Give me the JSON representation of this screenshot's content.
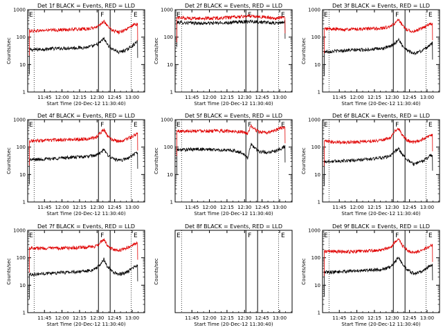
{
  "figure": {
    "layout": "3x3 grid of detector light curves",
    "y_scale": "log",
    "series_colors": {
      "Events": "#000000",
      "LLD": "#e00000"
    }
  },
  "chart_data": [
    {
      "type": "line",
      "title": "Det 1f BLACK = Events, RED = LLD",
      "xlabel": "Start Time (20-Dec-12 11:30:40)",
      "ylabel": "Counts/sec",
      "xticks": [
        "11:45",
        "12:00",
        "12:15",
        "12:30",
        "12:45",
        "13:00"
      ],
      "x_range_minutes": [
        0,
        100
      ],
      "ylim": [
        1,
        1000
      ],
      "yticks": [
        "1",
        "10",
        "100",
        "1000"
      ],
      "markers": [
        {
          "label": "E",
          "x": 0
        },
        {
          "label": "F",
          "x": 65.5
        },
        {
          "label": "E",
          "x": 94
        }
      ],
      "series": [
        {
          "name": "Events",
          "color": "#000000",
          "x": [
            0,
            5,
            20,
            35,
            50,
            58,
            62,
            65,
            68,
            72,
            78,
            85,
            91,
            94
          ],
          "y": [
            35,
            35,
            38,
            40,
            42,
            50,
            65,
            90,
            55,
            38,
            28,
            35,
            55,
            70
          ]
        },
        {
          "name": "LLD",
          "color": "#e00000",
          "x": [
            0,
            5,
            20,
            35,
            50,
            58,
            62,
            65,
            68,
            72,
            78,
            85,
            91,
            94
          ],
          "y": [
            170,
            170,
            180,
            190,
            200,
            220,
            300,
            380,
            250,
            180,
            150,
            200,
            280,
            300
          ]
        }
      ]
    },
    {
      "type": "line",
      "title": "Det 2f BLACK = Events, RED = LLD",
      "xlabel": "Start Time (20-Dec-12 11:30:40)",
      "ylabel": "Counts/sec",
      "xticks": [
        "11:45",
        "12:00",
        "12:15",
        "12:30",
        "12:45",
        "13:00"
      ],
      "x_range_minutes": [
        0,
        100
      ],
      "ylim": [
        1,
        1000
      ],
      "yticks": [
        "1",
        "10",
        "100",
        "1000"
      ],
      "markers": [
        {
          "label": "E",
          "x": 0
        },
        {
          "label": "F",
          "x": 65.5
        },
        {
          "label": "E",
          "x": 94
        }
      ],
      "series": [
        {
          "name": "Events",
          "color": "#000000",
          "x": [
            0,
            20,
            40,
            55,
            65,
            75,
            85,
            94
          ],
          "y": [
            350,
            320,
            330,
            360,
            380,
            350,
            320,
            350
          ]
        },
        {
          "name": "LLD",
          "color": "#e00000",
          "x": [
            0,
            20,
            40,
            55,
            65,
            75,
            85,
            94
          ],
          "y": [
            520,
            480,
            500,
            550,
            600,
            550,
            480,
            550
          ]
        }
      ]
    },
    {
      "type": "line",
      "title": "Det 3f BLACK = Events, RED = LLD",
      "xlabel": "Start Time (20-Dec-12 11:30:40)",
      "ylabel": "Counts/sec",
      "xticks": [
        "11:45",
        "12:00",
        "12:15",
        "12:30",
        "12:45",
        "13:00"
      ],
      "x_range_minutes": [
        0,
        100
      ],
      "ylim": [
        1,
        1000
      ],
      "yticks": [
        "1",
        "10",
        "100",
        "1000"
      ],
      "markers": [
        {
          "label": "E",
          "x": 0
        },
        {
          "label": "F",
          "x": 65.5
        },
        {
          "label": "E",
          "x": 94
        }
      ],
      "series": [
        {
          "name": "Events",
          "color": "#000000",
          "x": [
            0,
            5,
            20,
            35,
            50,
            58,
            62,
            65,
            68,
            72,
            78,
            85,
            91,
            94
          ],
          "y": [
            30,
            30,
            33,
            35,
            38,
            45,
            60,
            85,
            50,
            35,
            25,
            32,
            50,
            60
          ]
        },
        {
          "name": "LLD",
          "color": "#e00000",
          "x": [
            0,
            5,
            20,
            35,
            50,
            58,
            62,
            65,
            68,
            72,
            78,
            85,
            91,
            94
          ],
          "y": [
            200,
            200,
            190,
            200,
            210,
            240,
            330,
            420,
            270,
            190,
            160,
            210,
            290,
            310
          ]
        }
      ]
    },
    {
      "type": "line",
      "title": "Det 4f BLACK = Events, RED = LLD",
      "xlabel": "Start Time (20-Dec-12 11:30:40)",
      "ylabel": "Counts/sec",
      "xticks": [
        "11:45",
        "12:00",
        "12:15",
        "12:30",
        "12:45",
        "13:00"
      ],
      "x_range_minutes": [
        0,
        100
      ],
      "ylim": [
        1,
        1000
      ],
      "yticks": [
        "1",
        "10",
        "100",
        "1000"
      ],
      "markers": [
        {
          "label": "E",
          "x": 0
        },
        {
          "label": "F",
          "x": 65.5
        },
        {
          "label": "E",
          "x": 94
        }
      ],
      "series": [
        {
          "name": "Events",
          "color": "#000000",
          "x": [
            0,
            5,
            20,
            35,
            50,
            58,
            62,
            65,
            68,
            72,
            78,
            85,
            91,
            94
          ],
          "y": [
            35,
            35,
            38,
            42,
            45,
            50,
            60,
            80,
            55,
            40,
            32,
            38,
            55,
            65
          ]
        },
        {
          "name": "LLD",
          "color": "#e00000",
          "x": [
            0,
            5,
            20,
            35,
            50,
            58,
            62,
            65,
            68,
            72,
            78,
            85,
            91,
            94
          ],
          "y": [
            170,
            170,
            180,
            190,
            200,
            220,
            320,
            450,
            260,
            190,
            160,
            200,
            270,
            300
          ]
        }
      ]
    },
    {
      "type": "line",
      "title": "Det 5f BLACK = Events, RED = LLD",
      "xlabel": "Start Time (20-Dec-12 11:30:40)",
      "ylabel": "Counts/sec",
      "xticks": [
        "11:45",
        "12:00",
        "12:15",
        "12:30",
        "12:45",
        "13:00"
      ],
      "x_range_minutes": [
        0,
        100
      ],
      "ylim": [
        1,
        1000
      ],
      "yticks": [
        "1",
        "10",
        "100",
        "1000"
      ],
      "markers": [
        {
          "label": "E",
          "x": 0
        },
        {
          "label": "F",
          "x": 65.5
        },
        {
          "label": "E",
          "x": 94
        }
      ],
      "series": [
        {
          "name": "Events",
          "color": "#000000",
          "x": [
            0,
            5,
            20,
            35,
            50,
            58,
            62,
            65,
            68,
            72,
            78,
            85,
            91,
            94
          ],
          "y": [
            80,
            80,
            85,
            80,
            75,
            60,
            40,
            130,
            95,
            70,
            65,
            70,
            90,
            110
          ]
        },
        {
          "name": "LLD",
          "color": "#e00000",
          "x": [
            0,
            5,
            20,
            35,
            50,
            58,
            62,
            65,
            68,
            72,
            78,
            85,
            91,
            94
          ],
          "y": [
            380,
            380,
            400,
            390,
            380,
            360,
            300,
            600,
            450,
            360,
            330,
            400,
            500,
            550
          ]
        }
      ]
    },
    {
      "type": "line",
      "title": "Det 6f BLACK = Events, RED = LLD",
      "xlabel": "Start Time (20-Dec-12 11:30:40)",
      "ylabel": "Counts/sec",
      "xticks": [
        "11:45",
        "12:00",
        "12:15",
        "12:30",
        "12:45",
        "13:00"
      ],
      "x_range_minutes": [
        0,
        100
      ],
      "ylim": [
        1,
        1000
      ],
      "yticks": [
        "1",
        "10",
        "100",
        "1000"
      ],
      "markers": [
        {
          "label": "E",
          "x": 0
        },
        {
          "label": "F",
          "x": 65.5
        },
        {
          "label": "E",
          "x": 94
        }
      ],
      "series": [
        {
          "name": "Events",
          "color": "#000000",
          "x": [
            0,
            5,
            20,
            35,
            50,
            58,
            62,
            65,
            68,
            72,
            78,
            85,
            91,
            94
          ],
          "y": [
            30,
            30,
            32,
            35,
            40,
            48,
            70,
            90,
            55,
            35,
            24,
            30,
            45,
            55
          ]
        },
        {
          "name": "LLD",
          "color": "#e00000",
          "x": [
            0,
            5,
            20,
            35,
            50,
            58,
            62,
            65,
            68,
            72,
            78,
            85,
            91,
            94
          ],
          "y": [
            160,
            160,
            150,
            160,
            180,
            220,
            380,
            480,
            280,
            180,
            150,
            190,
            250,
            280
          ]
        }
      ]
    },
    {
      "type": "line",
      "title": "Det 7f BLACK = Events, RED = LLD",
      "xlabel": "Start Time (20-Dec-12 11:30:40)",
      "ylabel": "Counts/sec",
      "xticks": [
        "11:45",
        "12:00",
        "12:15",
        "12:30",
        "12:45",
        "13:00"
      ],
      "x_range_minutes": [
        0,
        100
      ],
      "ylim": [
        1,
        1000
      ],
      "yticks": [
        "1",
        "10",
        "100",
        "1000"
      ],
      "markers": [
        {
          "label": "E",
          "x": 0
        },
        {
          "label": "F",
          "x": 65.5
        },
        {
          "label": "E",
          "x": 94
        }
      ],
      "series": [
        {
          "name": "Events",
          "color": "#000000",
          "x": [
            0,
            5,
            20,
            35,
            50,
            58,
            62,
            65,
            68,
            72,
            78,
            85,
            91,
            94
          ],
          "y": [
            25,
            25,
            28,
            30,
            32,
            40,
            55,
            90,
            50,
            32,
            25,
            30,
            45,
            55
          ]
        },
        {
          "name": "LLD",
          "color": "#e00000",
          "x": [
            0,
            5,
            20,
            35,
            50,
            58,
            62,
            65,
            68,
            72,
            78,
            85,
            91,
            94
          ],
          "y": [
            230,
            230,
            220,
            230,
            240,
            260,
            350,
            480,
            280,
            210,
            180,
            230,
            320,
            340
          ]
        }
      ]
    },
    {
      "type": "line",
      "title": "Det 8f BLACK = Events, RED = LLD",
      "xlabel": "Start Time (20-Dec-12 11:30:40)",
      "ylabel": "Counts/sec",
      "xticks": [
        "11:45",
        "12:00",
        "12:15",
        "12:30",
        "12:45",
        "13:00"
      ],
      "x_range_minutes": [
        0,
        100
      ],
      "ylim": [
        1,
        1000
      ],
      "yticks": [],
      "markers": [
        {
          "label": "E",
          "x": 0
        },
        {
          "label": "F",
          "x": 65.5
        },
        {
          "label": "E",
          "x": 94
        }
      ],
      "series": []
    },
    {
      "type": "line",
      "title": "Det 9f BLACK = Events, RED = LLD",
      "xlabel": "Start Time (20-Dec-12 11:30:40)",
      "ylabel": "Counts/sec",
      "xticks": [
        "11:45",
        "12:00",
        "12:15",
        "12:30",
        "12:45",
        "13:00"
      ],
      "x_range_minutes": [
        0,
        100
      ],
      "ylim": [
        1,
        1000
      ],
      "yticks": [
        "1",
        "10",
        "100",
        "1000"
      ],
      "markers": [
        {
          "label": "E",
          "x": 0
        },
        {
          "label": "F",
          "x": 65.5
        },
        {
          "label": "E",
          "x": 94
        }
      ],
      "series": [
        {
          "name": "Events",
          "color": "#000000",
          "x": [
            0,
            5,
            20,
            35,
            50,
            58,
            62,
            65,
            68,
            72,
            78,
            85,
            91,
            94
          ],
          "y": [
            30,
            30,
            32,
            35,
            38,
            45,
            70,
            110,
            60,
            38,
            26,
            32,
            48,
            60
          ]
        },
        {
          "name": "LLD",
          "color": "#e00000",
          "x": [
            0,
            5,
            20,
            35,
            50,
            58,
            62,
            65,
            68,
            72,
            78,
            85,
            91,
            94
          ],
          "y": [
            170,
            170,
            165,
            175,
            190,
            230,
            400,
            500,
            290,
            190,
            150,
            190,
            260,
            280
          ]
        }
      ]
    }
  ]
}
